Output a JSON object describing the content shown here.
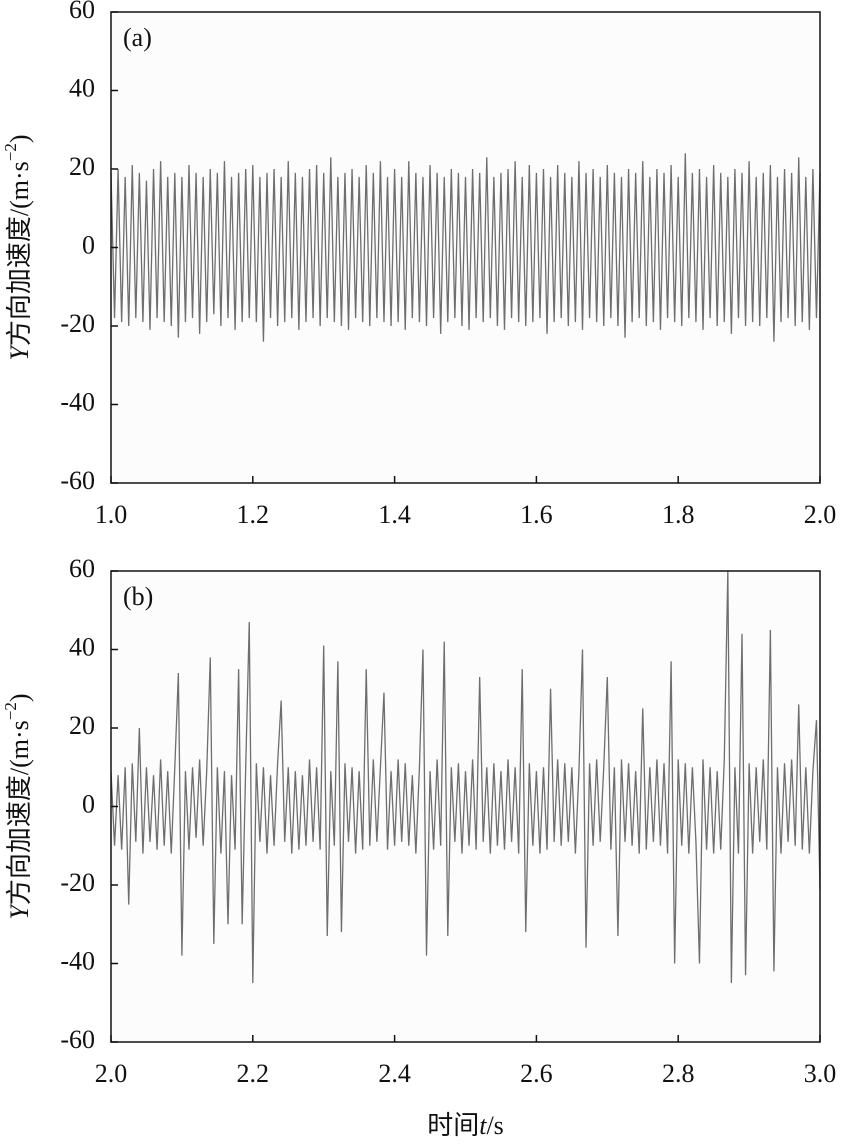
{
  "chart_data": [
    {
      "type": "line",
      "panel_label": "(a)",
      "ylabel": [
        "Y",
        "方向加速度/(m·s",
        "−2",
        ")"
      ],
      "xlim": [
        1,
        2
      ],
      "ylim": [
        -60,
        60
      ],
      "xticks": [
        {
          "value": 1,
          "label": "1.0"
        },
        1.2,
        1.4,
        1.6,
        1.8,
        {
          "value": 2,
          "label": "2.0"
        }
      ],
      "yticks": [
        -60,
        -40,
        -20,
        0,
        20,
        40,
        60
      ],
      "x": [
        1,
        1.005,
        1.01,
        1.015,
        1.02,
        1.025,
        1.03,
        1.035,
        1.04,
        1.045,
        1.05,
        1.055,
        1.06,
        1.065,
        1.07,
        1.075,
        1.08,
        1.085,
        1.09,
        1.095,
        1.1,
        1.105,
        1.11,
        1.115,
        1.12,
        1.125,
        1.13,
        1.135,
        1.14,
        1.145,
        1.15,
        1.155,
        1.16,
        1.165,
        1.17,
        1.175,
        1.18,
        1.185,
        1.19,
        1.195,
        1.2,
        1.205,
        1.21,
        1.215,
        1.22,
        1.225,
        1.23,
        1.235,
        1.24,
        1.245,
        1.25,
        1.255,
        1.26,
        1.265,
        1.27,
        1.275,
        1.28,
        1.285,
        1.29,
        1.295,
        1.3,
        1.305,
        1.31,
        1.315,
        1.32,
        1.325,
        1.33,
        1.335,
        1.34,
        1.345,
        1.35,
        1.355,
        1.36,
        1.365,
        1.37,
        1.375,
        1.38,
        1.385,
        1.39,
        1.395,
        1.4,
        1.405,
        1.41,
        1.415,
        1.42,
        1.425,
        1.43,
        1.435,
        1.44,
        1.445,
        1.45,
        1.455,
        1.46,
        1.465,
        1.47,
        1.475,
        1.48,
        1.485,
        1.49,
        1.495,
        1.5,
        1.505,
        1.51,
        1.515,
        1.52,
        1.525,
        1.53,
        1.535,
        1.54,
        1.545,
        1.55,
        1.555,
        1.56,
        1.565,
        1.57,
        1.575,
        1.58,
        1.585,
        1.59,
        1.595,
        1.6,
        1.605,
        1.61,
        1.615,
        1.62,
        1.625,
        1.63,
        1.635,
        1.64,
        1.645,
        1.65,
        1.655,
        1.66,
        1.665,
        1.67,
        1.675,
        1.68,
        1.685,
        1.69,
        1.695,
        1.7,
        1.705,
        1.71,
        1.715,
        1.72,
        1.725,
        1.73,
        1.735,
        1.74,
        1.745,
        1.75,
        1.755,
        1.76,
        1.765,
        1.77,
        1.775,
        1.78,
        1.785,
        1.79,
        1.795,
        1.8,
        1.805,
        1.81,
        1.815,
        1.82,
        1.825,
        1.83,
        1.835,
        1.84,
        1.845,
        1.85,
        1.855,
        1.86,
        1.865,
        1.87,
        1.875,
        1.88,
        1.885,
        1.89,
        1.895,
        1.9,
        1.905,
        1.91,
        1.915,
        1.92,
        1.925,
        1.93,
        1.935,
        1.94,
        1.945,
        1.95,
        1.955,
        1.96,
        1.965,
        1.97,
        1.975,
        1.98,
        1.985,
        1.99,
        1.995,
        2
      ],
      "series": [
        {
          "color": "#6e6e6e",
          "values": [
            19,
            -18,
            20,
            -19,
            18,
            -20,
            21,
            -18,
            19,
            -19,
            17,
            -21,
            20,
            -18,
            22,
            -19,
            18,
            -20,
            19,
            -23,
            18,
            -19,
            21,
            -18,
            19,
            -22,
            18,
            -19,
            20,
            -17,
            19,
            -20,
            22,
            -18,
            18,
            -21,
            19,
            -19,
            20,
            -18,
            21,
            -19,
            18,
            -24,
            19,
            -18,
            20,
            -20,
            18,
            -19,
            22,
            -18,
            19,
            -21,
            18,
            -19,
            20,
            -18,
            21,
            -20,
            19,
            -18,
            23,
            -19,
            18,
            -20,
            19,
            -21,
            20,
            -18,
            18,
            -19,
            21,
            -20,
            19,
            -18,
            22,
            -19,
            18,
            -20,
            20,
            -19,
            18,
            -21,
            22,
            -18,
            19,
            -19,
            18,
            -20,
            21,
            -18,
            19,
            -22,
            18,
            -19,
            20,
            -18,
            19,
            -20,
            18,
            -21,
            20,
            -18,
            19,
            -19,
            23,
            -18,
            18,
            -20,
            19,
            -21,
            20,
            -18,
            22,
            -19,
            18,
            -20,
            21,
            -19,
            19,
            -18,
            20,
            -22,
            18,
            -19,
            21,
            -18,
            19,
            -20,
            18,
            -19,
            22,
            -21,
            19,
            -18,
            20,
            -19,
            18,
            -20,
            21,
            -18,
            19,
            -20,
            18,
            -23,
            20,
            -19,
            19,
            -18,
            22,
            -20,
            18,
            -19,
            20,
            -21,
            19,
            -18,
            21,
            -19,
            18,
            -20,
            24,
            -18,
            19,
            -19,
            20,
            -21,
            18,
            -18,
            21,
            -20,
            19,
            -19,
            18,
            -22,
            20,
            -18,
            19,
            -20,
            22,
            -19,
            18,
            -20,
            19,
            -18,
            21,
            -24,
            18,
            -19,
            20,
            -18,
            19,
            -20,
            23,
            -19,
            18,
            -21,
            20,
            -18,
            19
          ]
        }
      ]
    },
    {
      "type": "line",
      "panel_label": "(b)",
      "ylabel": [
        "Y",
        "方向加速度/(m·s",
        "−2",
        ")"
      ],
      "xlabel": [
        "时间",
        "t",
        "/s"
      ],
      "xlim": [
        2,
        3
      ],
      "ylim": [
        -60,
        60
      ],
      "xticks": [
        {
          "value": 2,
          "label": "2.0"
        },
        2.2,
        2.4,
        2.6,
        2.8,
        {
          "value": 3,
          "label": "3.0"
        }
      ],
      "yticks": [
        -60,
        -40,
        -20,
        0,
        20,
        40,
        60
      ],
      "x": [
        2,
        2.005,
        2.01,
        2.015,
        2.02,
        2.025,
        2.03,
        2.035,
        2.04,
        2.045,
        2.05,
        2.055,
        2.06,
        2.065,
        2.07,
        2.075,
        2.08,
        2.085,
        2.09,
        2.095,
        2.1,
        2.105,
        2.11,
        2.115,
        2.12,
        2.125,
        2.13,
        2.135,
        2.14,
        2.145,
        2.15,
        2.155,
        2.16,
        2.165,
        2.17,
        2.175,
        2.18,
        2.185,
        2.19,
        2.195,
        2.2,
        2.205,
        2.21,
        2.215,
        2.22,
        2.225,
        2.23,
        2.235,
        2.24,
        2.245,
        2.25,
        2.255,
        2.26,
        2.265,
        2.27,
        2.275,
        2.28,
        2.285,
        2.29,
        2.295,
        2.3,
        2.305,
        2.31,
        2.315,
        2.32,
        2.325,
        2.33,
        2.335,
        2.34,
        2.345,
        2.35,
        2.355,
        2.36,
        2.365,
        2.37,
        2.375,
        2.38,
        2.385,
        2.39,
        2.395,
        2.4,
        2.405,
        2.41,
        2.415,
        2.42,
        2.425,
        2.43,
        2.435,
        2.44,
        2.445,
        2.45,
        2.455,
        2.46,
        2.465,
        2.47,
        2.475,
        2.48,
        2.485,
        2.49,
        2.495,
        2.5,
        2.505,
        2.51,
        2.515,
        2.52,
        2.525,
        2.53,
        2.535,
        2.54,
        2.545,
        2.55,
        2.555,
        2.56,
        2.565,
        2.57,
        2.575,
        2.58,
        2.585,
        2.59,
        2.595,
        2.6,
        2.605,
        2.61,
        2.615,
        2.62,
        2.625,
        2.63,
        2.635,
        2.64,
        2.645,
        2.65,
        2.655,
        2.66,
        2.665,
        2.67,
        2.675,
        2.68,
        2.685,
        2.69,
        2.695,
        2.7,
        2.705,
        2.71,
        2.715,
        2.72,
        2.725,
        2.73,
        2.735,
        2.74,
        2.745,
        2.75,
        2.755,
        2.76,
        2.765,
        2.77,
        2.775,
        2.78,
        2.785,
        2.79,
        2.795,
        2.8,
        2.805,
        2.81,
        2.815,
        2.82,
        2.825,
        2.83,
        2.835,
        2.84,
        2.845,
        2.85,
        2.855,
        2.86,
        2.865,
        2.87,
        2.875,
        2.88,
        2.885,
        2.89,
        2.895,
        2.9,
        2.905,
        2.91,
        2.915,
        2.92,
        2.925,
        2.93,
        2.935,
        2.94,
        2.945,
        2.95,
        2.955,
        2.96,
        2.965,
        2.97,
        2.975,
        2.98,
        2.985,
        2.99,
        2.995,
        3
      ],
      "series": [
        {
          "color": "#6e6e6e",
          "values": [
            9,
            -10,
            8,
            -11,
            10,
            -25,
            11,
            -9,
            20,
            -12,
            10,
            -9,
            8,
            -11,
            12,
            -10,
            9,
            -12,
            10,
            34,
            -38,
            9,
            -11,
            10,
            -8,
            12,
            -10,
            9,
            38,
            -35,
            10,
            -12,
            9,
            -30,
            8,
            -11,
            35,
            -30,
            10,
            47,
            -45,
            11,
            -9,
            10,
            -12,
            8,
            -10,
            11,
            27,
            -9,
            10,
            -12,
            9,
            -11,
            8,
            -10,
            12,
            -9,
            10,
            -11,
            41,
            -33,
            9,
            -10,
            37,
            -32,
            11,
            -9,
            10,
            -12,
            9,
            -11,
            35,
            -10,
            12,
            -9,
            10,
            29,
            -11,
            9,
            -10,
            12,
            -9,
            11,
            -10,
            8,
            -12,
            10,
            40,
            -38,
            9,
            -11,
            12,
            -10,
            42,
            -33,
            10,
            -9,
            11,
            -12,
            9,
            -10,
            12,
            -11,
            33,
            -9,
            10,
            -12,
            11,
            -10,
            9,
            -11,
            12,
            -9,
            10,
            -12,
            35,
            -32,
            11,
            -10,
            9,
            -12,
            10,
            -11,
            30,
            -9,
            12,
            -10,
            11,
            -9,
            10,
            -12,
            9,
            40,
            -36,
            11,
            -10,
            12,
            -9,
            10,
            33,
            -11,
            10,
            -33,
            12,
            -9,
            11,
            -10,
            9,
            -12,
            25,
            -11,
            10,
            -9,
            12,
            -10,
            11,
            -12,
            37,
            -40,
            12,
            -10,
            11,
            -12,
            10,
            -9,
            -40,
            12,
            -11,
            10,
            -12,
            9,
            -11,
            12,
            60,
            -45,
            10,
            -12,
            44,
            -43,
            11,
            -12,
            10,
            -9,
            12,
            -11,
            45,
            -42,
            10,
            -12,
            11,
            -9,
            12,
            -10,
            26,
            -11,
            10,
            -12,
            9,
            22,
            -21
          ]
        }
      ]
    }
  ]
}
